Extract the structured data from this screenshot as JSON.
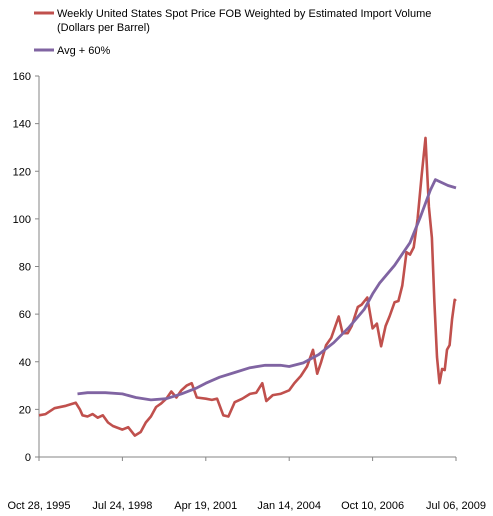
{
  "chart_data": {
    "type": "line",
    "x_unit": "date",
    "xlim": [
      "1995-10-28",
      "2009-07-06"
    ],
    "ylim": [
      0,
      160
    ],
    "y_ticks": [
      0,
      20,
      40,
      60,
      80,
      100,
      120,
      140,
      160
    ],
    "x_tick_labels": [
      {
        "date": "1995-10-28",
        "label": "Oct 28, 1995"
      },
      {
        "date": "1998-07-24",
        "label": "Jul 24, 1998"
      },
      {
        "date": "2001-04-19",
        "label": "Apr 19, 2001"
      },
      {
        "date": "2004-01-14",
        "label": "Jan 14, 2004"
      },
      {
        "date": "2006-10-10",
        "label": "Oct 10, 2006"
      },
      {
        "date": "2009-07-06",
        "label": "Jul 06, 2009"
      }
    ],
    "grid": false,
    "legend_position": "top-left",
    "series": [
      {
        "name": "Weekly United States Spot Price FOB Weighted by Estimated  Import Volume (Dollars per Barrel)",
        "color": "#c0504d",
        "points": [
          [
            "1995-10-28",
            17.5
          ],
          [
            "1996-01-15",
            18.0
          ],
          [
            "1996-05-01",
            20.5
          ],
          [
            "1996-09-15",
            21.5
          ],
          [
            "1997-01-10",
            22.8
          ],
          [
            "1997-03-01",
            20.0
          ],
          [
            "1997-04-01",
            17.5
          ],
          [
            "1997-06-01",
            17.0
          ],
          [
            "1997-08-01",
            18.0
          ],
          [
            "1997-10-01",
            16.5
          ],
          [
            "1997-12-01",
            17.5
          ],
          [
            "1998-02-01",
            14.5
          ],
          [
            "1998-04-01",
            13.0
          ],
          [
            "1998-07-24",
            11.5
          ],
          [
            "1998-10-01",
            12.5
          ],
          [
            "1998-12-20",
            9.0
          ],
          [
            "1999-03-01",
            10.5
          ],
          [
            "1999-05-01",
            14.5
          ],
          [
            "1999-07-01",
            17.0
          ],
          [
            "1999-09-01",
            21.0
          ],
          [
            "1999-11-01",
            22.5
          ],
          [
            "2000-01-01",
            24.5
          ],
          [
            "2000-03-01",
            27.5
          ],
          [
            "2000-05-01",
            25.0
          ],
          [
            "2000-07-01",
            28.0
          ],
          [
            "2000-09-01",
            30.0
          ],
          [
            "2000-11-01",
            31.0
          ],
          [
            "2001-01-01",
            25.0
          ],
          [
            "2001-04-19",
            24.5
          ],
          [
            "2001-07-01",
            24.0
          ],
          [
            "2001-09-01",
            24.5
          ],
          [
            "2001-11-15",
            17.5
          ],
          [
            "2002-01-15",
            17.0
          ],
          [
            "2002-04-01",
            23.0
          ],
          [
            "2002-07-01",
            24.5
          ],
          [
            "2002-10-01",
            26.5
          ],
          [
            "2002-12-15",
            27.0
          ],
          [
            "2003-02-25",
            31.0
          ],
          [
            "2003-04-15",
            23.5
          ],
          [
            "2003-07-01",
            26.0
          ],
          [
            "2003-10-01",
            26.5
          ],
          [
            "2004-01-14",
            28.0
          ],
          [
            "2004-03-15",
            31.0
          ],
          [
            "2004-06-01",
            34.0
          ],
          [
            "2004-08-15",
            38.0
          ],
          [
            "2004-10-25",
            45.0
          ],
          [
            "2004-12-15",
            35.0
          ],
          [
            "2005-02-01",
            40.0
          ],
          [
            "2005-04-01",
            47.0
          ],
          [
            "2005-06-01",
            50.0
          ],
          [
            "2005-08-29",
            59.0
          ],
          [
            "2005-10-15",
            52.0
          ],
          [
            "2005-12-15",
            52.0
          ],
          [
            "2006-02-01",
            55.0
          ],
          [
            "2006-04-15",
            63.0
          ],
          [
            "2006-06-01",
            64.0
          ],
          [
            "2006-08-07",
            67.0
          ],
          [
            "2006-10-10",
            54.0
          ],
          [
            "2006-12-01",
            56.0
          ],
          [
            "2007-01-20",
            46.5
          ],
          [
            "2007-03-15",
            55.0
          ],
          [
            "2007-05-01",
            59.0
          ],
          [
            "2007-07-01",
            65.0
          ],
          [
            "2007-08-15",
            65.5
          ],
          [
            "2007-10-01",
            72.0
          ],
          [
            "2007-11-20",
            86.0
          ],
          [
            "2008-01-01",
            85.0
          ],
          [
            "2008-02-15",
            88.0
          ],
          [
            "2008-04-01",
            100.0
          ],
          [
            "2008-05-20",
            118.0
          ],
          [
            "2008-07-05",
            134.0
          ],
          [
            "2008-08-15",
            105.0
          ],
          [
            "2008-09-20",
            92.0
          ],
          [
            "2008-10-20",
            65.0
          ],
          [
            "2008-11-20",
            42.0
          ],
          [
            "2008-12-20",
            31.0
          ],
          [
            "2009-01-20",
            37.0
          ],
          [
            "2009-02-20",
            36.5
          ],
          [
            "2009-03-20",
            45.0
          ],
          [
            "2009-04-20",
            47.0
          ],
          [
            "2009-05-20",
            58.0
          ],
          [
            "2009-06-20",
            66.0
          ],
          [
            "2009-07-06",
            65.5
          ]
        ]
      },
      {
        "name": "Avg + 60%",
        "color": "#8064a2",
        "points": [
          [
            "1997-02-01",
            26.5
          ],
          [
            "1997-06-01",
            27.0
          ],
          [
            "1998-01-01",
            27.0
          ],
          [
            "1998-07-24",
            26.5
          ],
          [
            "1999-01-01",
            25.0
          ],
          [
            "1999-07-01",
            24.0
          ],
          [
            "2000-01-01",
            24.5
          ],
          [
            "2000-07-01",
            26.5
          ],
          [
            "2001-01-01",
            29.0
          ],
          [
            "2001-04-19",
            31.0
          ],
          [
            "2001-10-01",
            33.5
          ],
          [
            "2002-04-01",
            35.5
          ],
          [
            "2002-10-01",
            37.5
          ],
          [
            "2003-04-01",
            38.5
          ],
          [
            "2003-10-01",
            38.5
          ],
          [
            "2004-01-14",
            38.0
          ],
          [
            "2004-07-01",
            39.5
          ],
          [
            "2005-01-01",
            43.0
          ],
          [
            "2005-07-01",
            48.0
          ],
          [
            "2006-01-01",
            54.5
          ],
          [
            "2006-07-01",
            62.0
          ],
          [
            "2006-10-10",
            68.5
          ],
          [
            "2007-01-01",
            73.0
          ],
          [
            "2007-07-01",
            80.5
          ],
          [
            "2008-01-01",
            90.0
          ],
          [
            "2008-05-01",
            100.5
          ],
          [
            "2008-09-01",
            112.0
          ],
          [
            "2008-11-01",
            116.5
          ],
          [
            "2009-01-01",
            115.5
          ],
          [
            "2009-04-01",
            114.0
          ],
          [
            "2009-07-06",
            113.0
          ]
        ]
      }
    ]
  }
}
